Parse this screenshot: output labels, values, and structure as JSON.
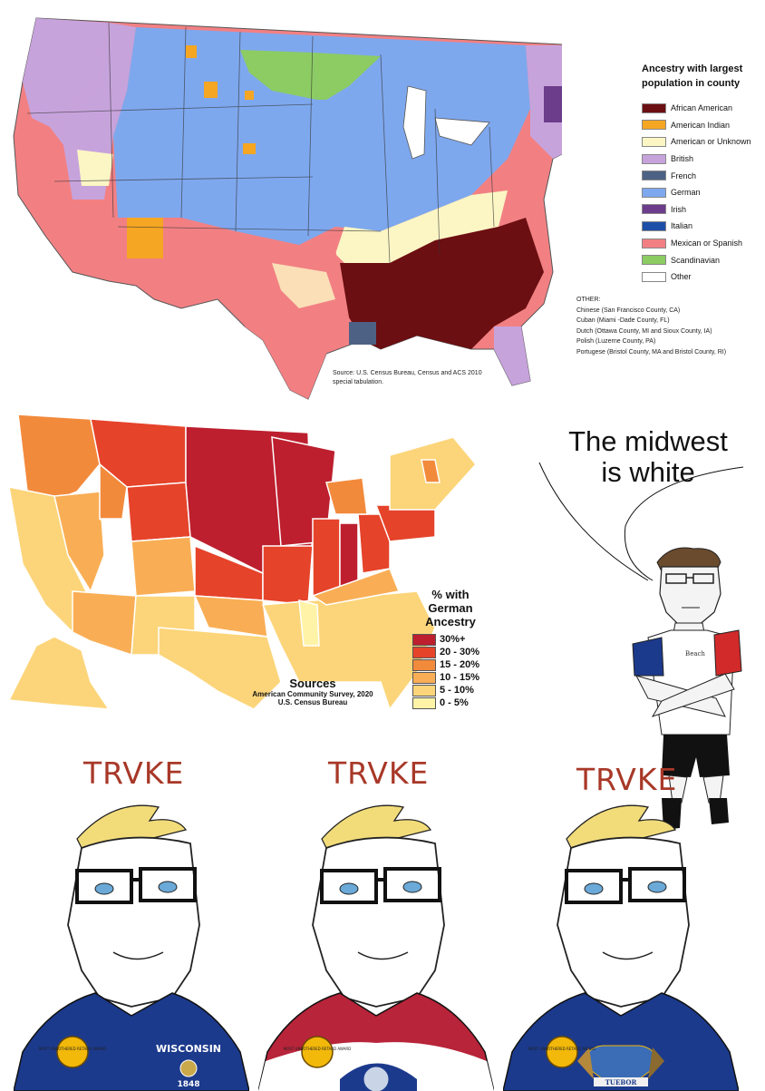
{
  "legend1": {
    "title": "Ancestry with largest population in county",
    "items": [
      {
        "label": "African American",
        "color": "#6b0f12"
      },
      {
        "label": "American Indian",
        "color": "#f5a623"
      },
      {
        "label": "American or Unknown",
        "color": "#fbf6c4"
      },
      {
        "label": "British",
        "color": "#c7a3dc"
      },
      {
        "label": "French",
        "color": "#4c6184"
      },
      {
        "label": "German",
        "color": "#7ea8ee"
      },
      {
        "label": "Irish",
        "color": "#6b3d8a"
      },
      {
        "label": "Italian",
        "color": "#1d4fa8"
      },
      {
        "label": "Mexican or Spanish",
        "color": "#f28083"
      },
      {
        "label": "Scandinavian",
        "color": "#8ccc63"
      },
      {
        "label": "Other",
        "color": "#ffffff"
      }
    ]
  },
  "other1": {
    "title": "OTHER:",
    "lines": [
      "Chinese (San Francisco County, CA)",
      "Cuban (Miami -Dade County, FL)",
      "Dutch (Ottawa County, MI and Sioux County, IA)",
      "Polish (Luzerne County, PA)",
      "Portugese (Bristol County, MA and Bristol County, RI)"
    ]
  },
  "source1": "Source: U.S. Census Bureau, Census and ACS 2010 special tabulation.",
  "legend2": {
    "title": "% with German Ancestry",
    "items": [
      {
        "label": "30%+",
        "color": "#bd1f2e"
      },
      {
        "label": "20 - 30%",
        "color": "#e5432a"
      },
      {
        "label": "15 - 20%",
        "color": "#f28a3c"
      },
      {
        "label": "10 - 15%",
        "color": "#f9ae55"
      },
      {
        "label": "5 - 10%",
        "color": "#fcd57a"
      },
      {
        "label": "0 - 5%",
        "color": "#fff3a8"
      }
    ]
  },
  "source2": {
    "heading": "Sources",
    "line1": "American Community Survey, 2020",
    "line2": "U.S. Census Bureau"
  },
  "speech": {
    "line1": "The midwest",
    "line2": "is white"
  },
  "trvke": "TRVKE",
  "wojaks": [
    {
      "shirt_text": "WISCONSIN",
      "year": "1848",
      "shirt_color": "#1c3a8c",
      "medal_text": "MOST UNBOTHERED RETARD AWARD"
    },
    {
      "shirt_text": "",
      "year": "",
      "shirt_color": "#b8243a",
      "medal_text": "MOST UNBOTHERED RETARD AWARD"
    },
    {
      "shirt_text": "TUEBOR",
      "year": "",
      "shirt_color": "#1c3a8c",
      "medal_text": "MOST UNBOTHERED RETARD AWARD"
    }
  ],
  "man_tshirt": "Beach"
}
